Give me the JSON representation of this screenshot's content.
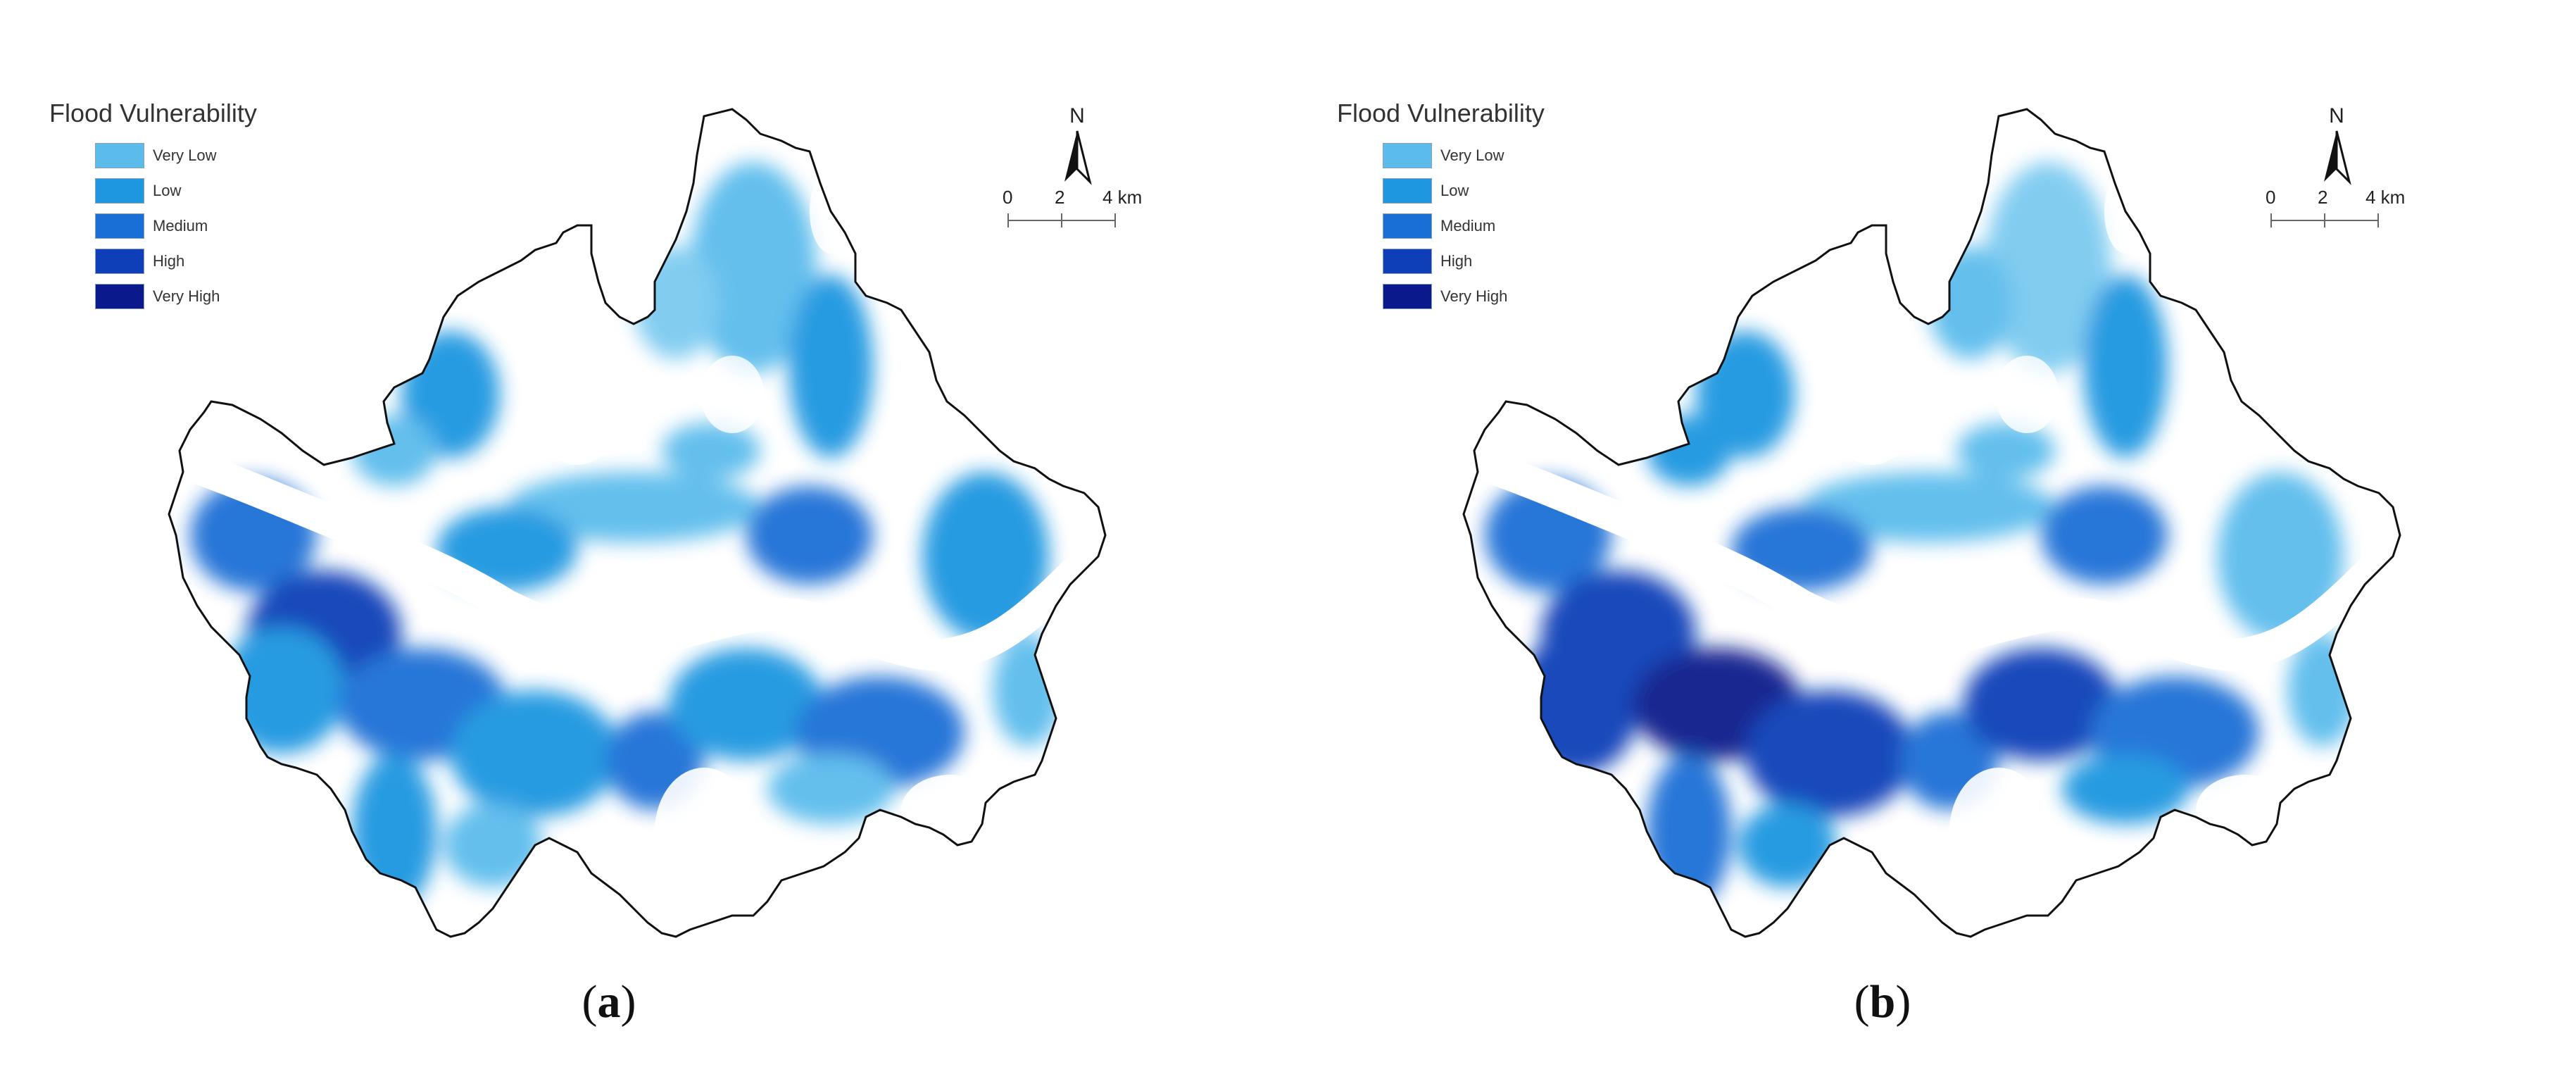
{
  "legend": {
    "title": "Flood Vulnerability",
    "classes": [
      {
        "label": "Very Low",
        "color": "#5bbcec"
      },
      {
        "label": "Low",
        "color": "#1e96e0"
      },
      {
        "label": "Medium",
        "color": "#1a6fd6"
      },
      {
        "label": "High",
        "color": "#0f3fb8"
      },
      {
        "label": "Very High",
        "color": "#0a1a8c"
      }
    ]
  },
  "north_arrow": {
    "label": "N"
  },
  "scale_bar": {
    "labels": [
      "0",
      "2",
      "4 km"
    ]
  },
  "panels": [
    {
      "id": "a",
      "label": "a"
    },
    {
      "id": "b",
      "label": "b"
    }
  ]
}
